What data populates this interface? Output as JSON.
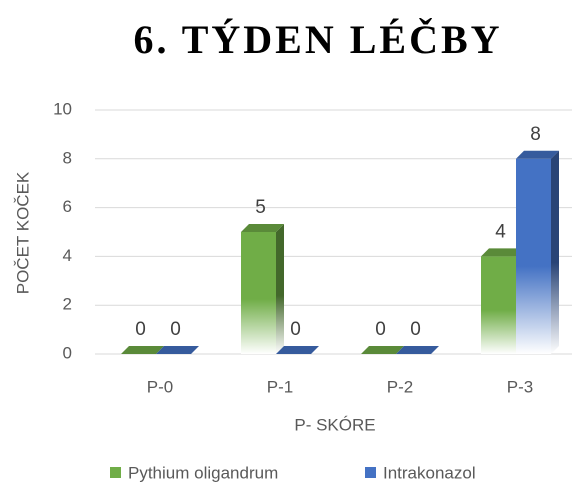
{
  "chart_data": {
    "type": "bar3d",
    "title": "6. TÝDEN LÉČBY",
    "x_label": "P- SKÓRE",
    "y_label": "POČET KOČEK",
    "categories": [
      "P-0",
      "P-1",
      "P-2",
      "P-3"
    ],
    "series": [
      {
        "name": "Pythium oligandrum",
        "color": "#70ad47",
        "values": [
          0,
          5,
          0,
          4
        ]
      },
      {
        "name": "Intrakonazol",
        "color": "#4472c4",
        "values": [
          0,
          0,
          0,
          8
        ]
      }
    ],
    "ylim": [
      0,
      10
    ],
    "yticks": [
      0,
      2,
      4,
      6,
      8,
      10
    ],
    "grid": true,
    "legend": "bottom"
  }
}
